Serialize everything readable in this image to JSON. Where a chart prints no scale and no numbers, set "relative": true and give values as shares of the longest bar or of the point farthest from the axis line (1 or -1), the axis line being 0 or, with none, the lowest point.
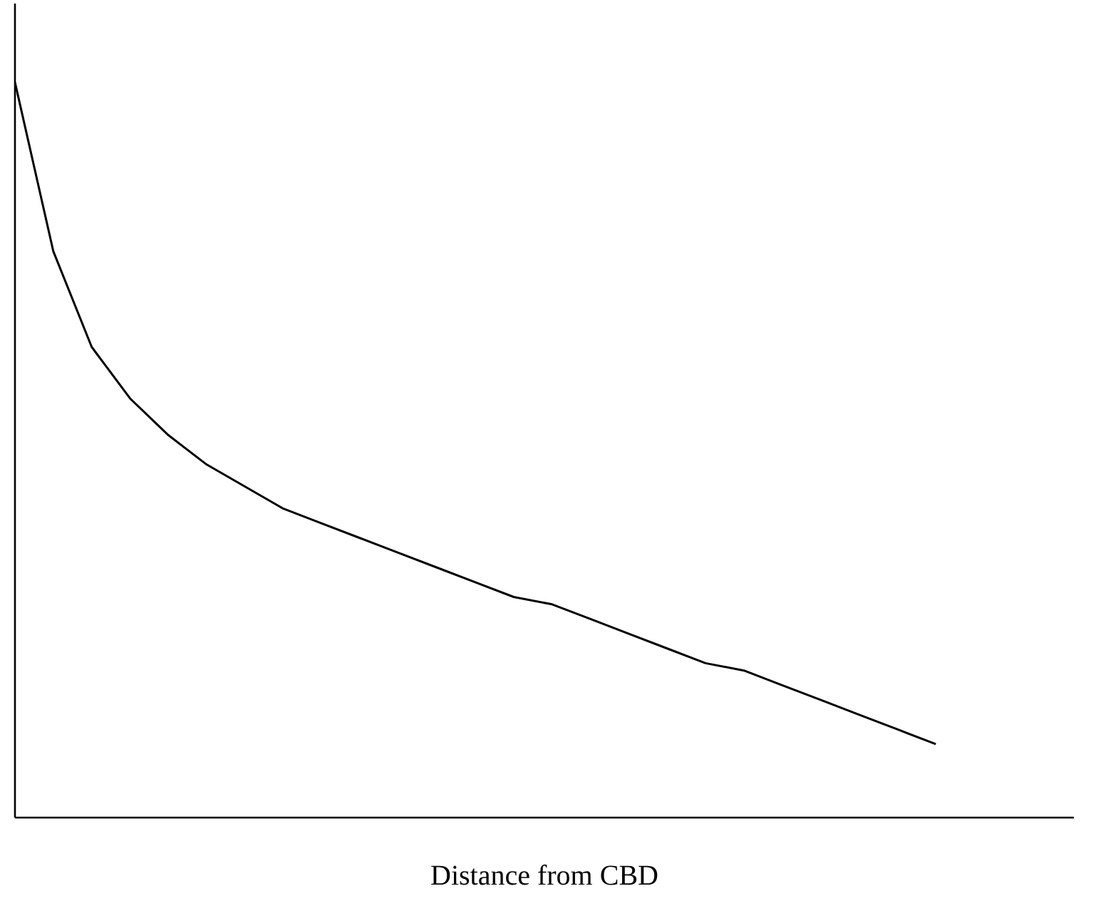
{
  "chart_data": {
    "type": "line",
    "relative": true,
    "xlabel": "Distance from CBD",
    "categories": [
      null,
      null,
      null,
      null,
      null,
      null,
      null,
      null,
      null,
      null,
      null,
      null,
      null,
      null,
      null,
      null,
      null,
      null,
      null,
      null,
      null,
      null,
      null,
      null,
      null
    ],
    "series": [
      {
        "color": "#000000",
        "values": [
          1,
          0.77,
          0.64,
          0.57,
          0.52,
          0.48,
          0.45,
          0.42,
          0.4,
          0.38,
          0.36,
          0.34,
          0.32,
          0.3,
          0.29,
          0.27,
          0.25,
          0.23,
          0.21,
          0.2,
          0.18,
          0.16,
          0.14,
          0.12,
          0.1
        ]
      }
    ],
    "marker": "none",
    "line_style": "solid"
  }
}
